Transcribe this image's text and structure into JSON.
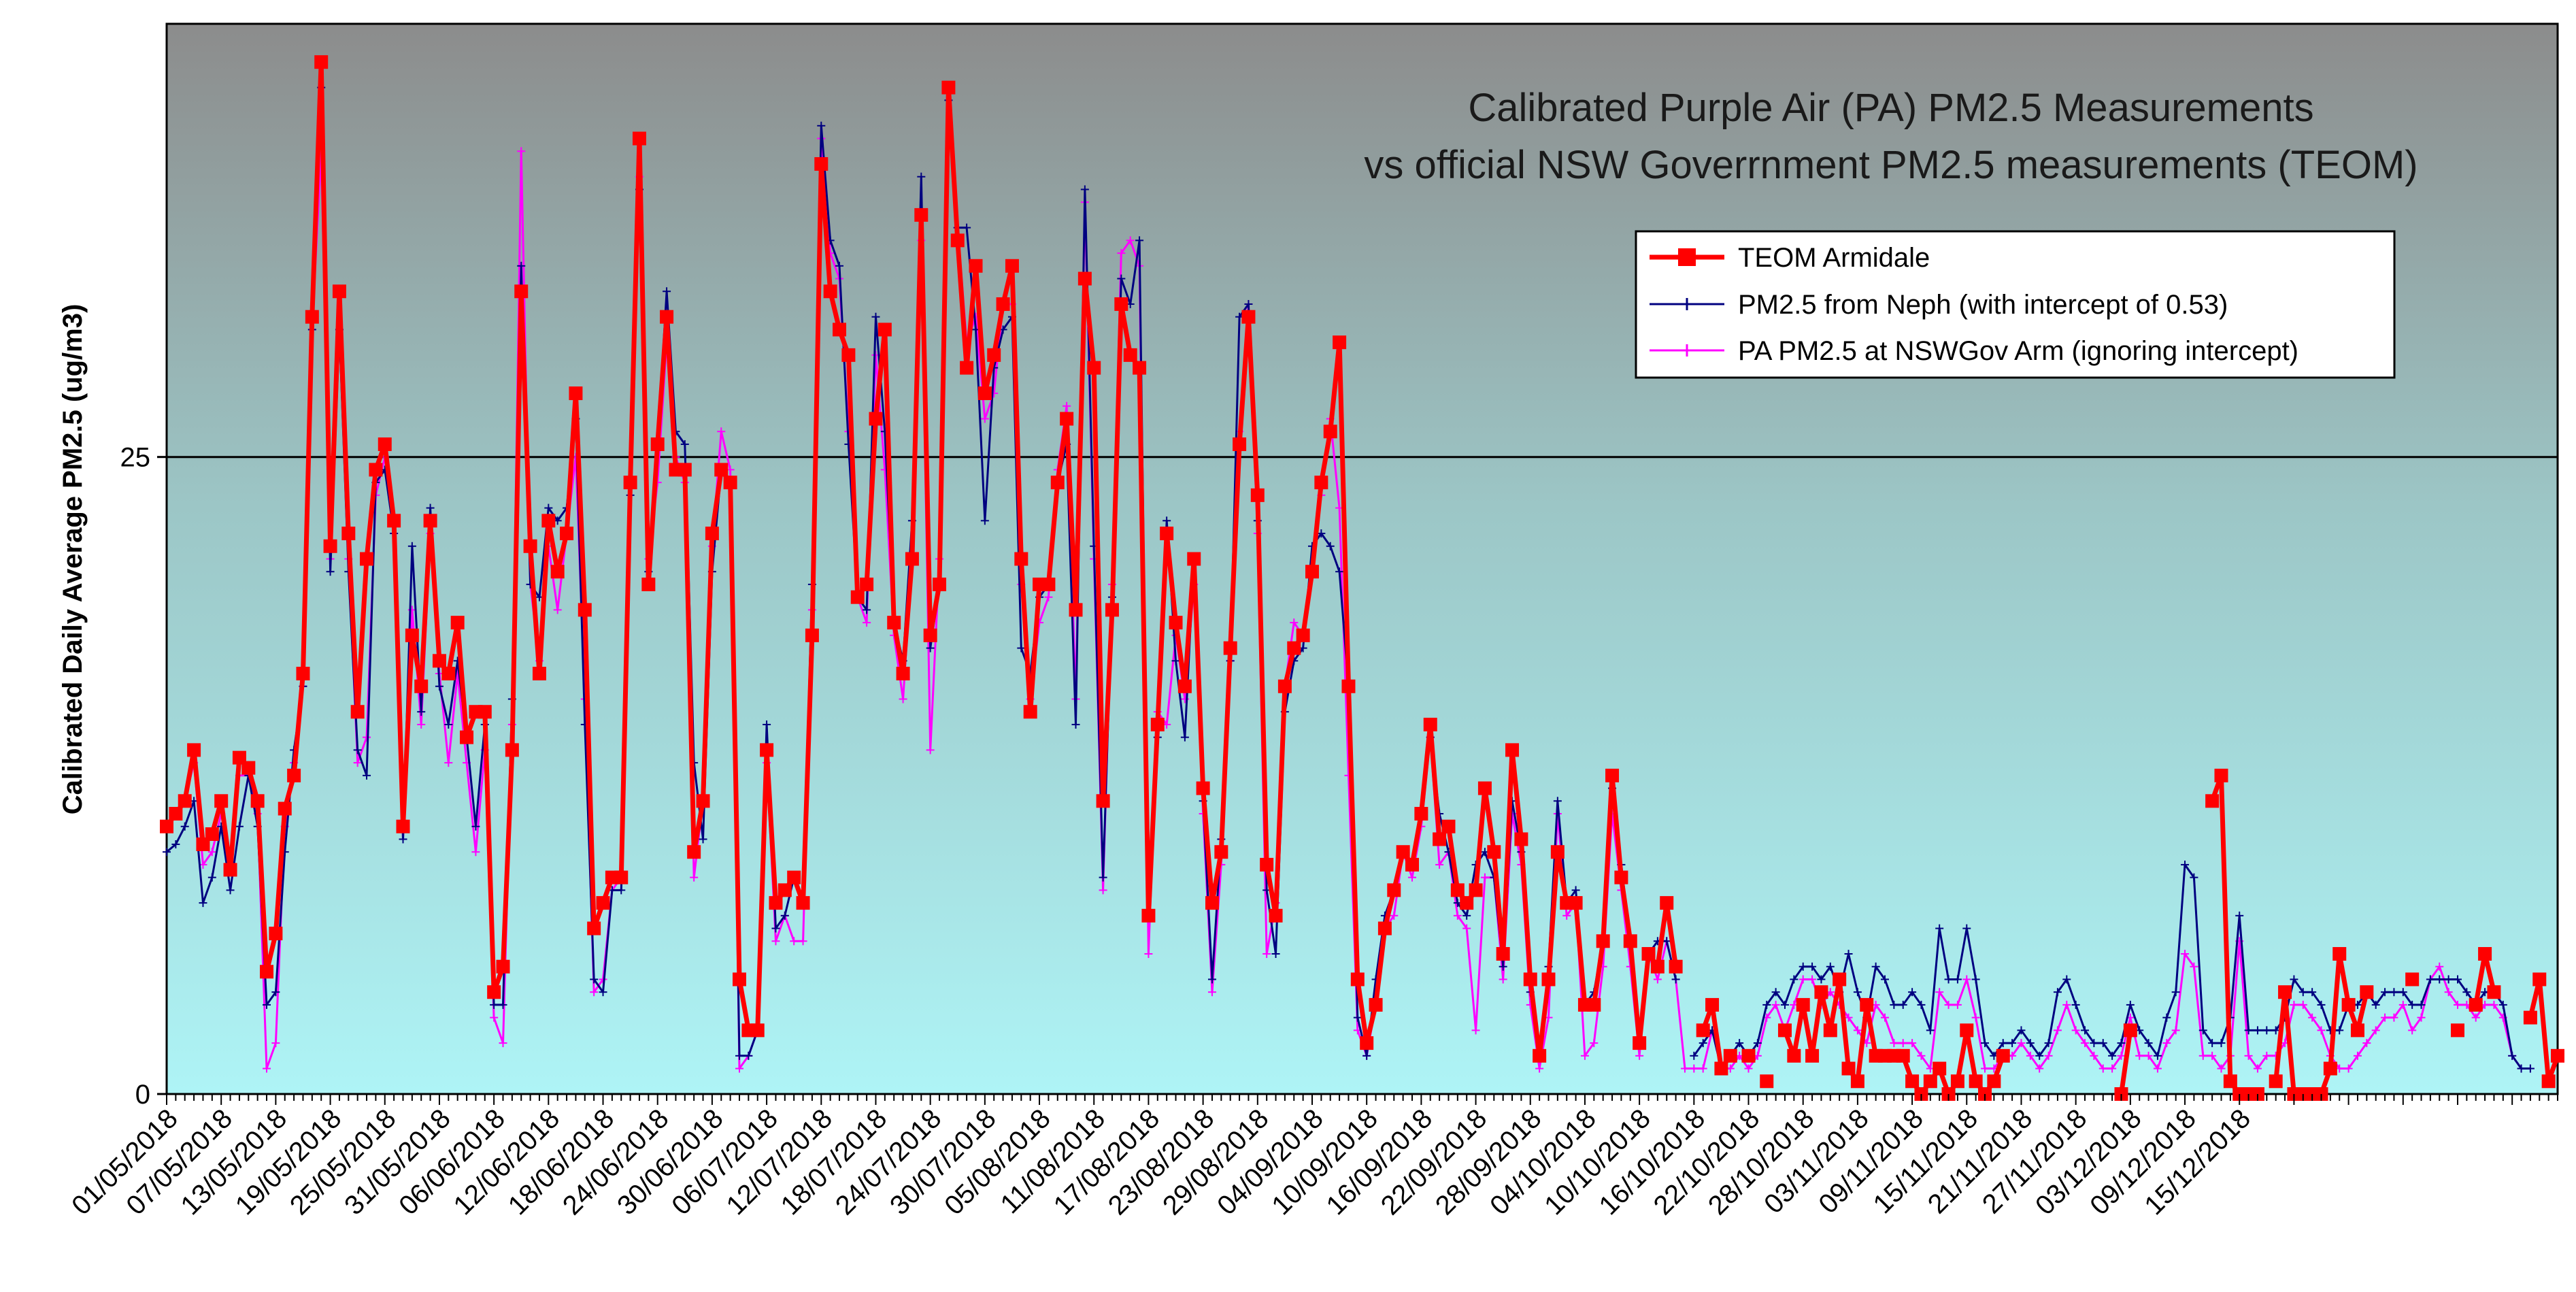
{
  "chart_data": {
    "type": "line",
    "title_lines": [
      "Calibrated Purple Air (PA) PM2.5 Measurements",
      "vs official NSW Goverrnment PM2.5 measurements (TEOM)"
    ],
    "ylabel": "Calibrated Daily Average PM2.5 (ug/m3)",
    "xlabel": "",
    "ylim": [
      0,
      42
    ],
    "yticks": [
      0,
      25
    ],
    "reference_line": 25,
    "x_tick_labels": [
      "01/05/2018",
      "07/05/2018",
      "13/05/2018",
      "19/05/2018",
      "25/05/2018",
      "31/05/2018",
      "06/06/2018",
      "12/06/2018",
      "18/06/2018",
      "24/06/2018",
      "30/06/2018",
      "06/07/2018",
      "12/07/2018",
      "18/07/2018",
      "24/07/2018",
      "30/07/2018",
      "05/08/2018",
      "11/08/2018",
      "17/08/2018",
      "23/08/2018",
      "29/08/2018",
      "04/09/2018",
      "10/09/2018",
      "16/09/2018",
      "22/09/2018",
      "28/09/2018",
      "04/10/2018",
      "10/10/2018",
      "16/10/2018",
      "22/10/2018",
      "28/10/2018",
      "03/11/2018",
      "09/11/2018",
      "15/11/2018",
      "21/11/2018",
      "27/11/2018",
      "03/12/2018",
      "09/12/2018",
      "15/12/2018"
    ],
    "x_tick_step_days": 6,
    "series": [
      {
        "name": "TEOM Armidale",
        "color": "#ff0000",
        "marker": "square",
        "values": [
          10.5,
          11.0,
          11.5,
          13.5,
          9.8,
          10.2,
          11.5,
          8.8,
          13.2,
          12.8,
          11.5,
          4.8,
          6.3,
          11.2,
          12.5,
          16.5,
          30.5,
          40.5,
          21.5,
          31.5,
          22.0,
          15.0,
          21.0,
          24.5,
          25.5,
          22.5,
          10.5,
          18.0,
          16.0,
          22.5,
          17.0,
          16.5,
          18.5,
          14.0,
          15.0,
          15.0,
          4.0,
          5.0,
          13.5,
          31.5,
          21.5,
          16.5,
          22.5,
          20.5,
          22.0,
          27.5,
          19.0,
          6.5,
          7.5,
          8.5,
          8.5,
          24.0,
          37.5,
          20.0,
          25.5,
          30.5,
          24.5,
          24.5,
          9.5,
          11.5,
          22.0,
          24.5,
          24.0,
          4.5,
          2.5,
          2.5,
          13.5,
          7.5,
          8.0,
          8.5,
          7.5,
          18.0,
          36.5,
          31.5,
          30.0,
          29.0,
          19.5,
          20.0,
          26.5,
          30.0,
          18.5,
          16.5,
          21.0,
          34.5,
          18.0,
          20.0,
          39.5,
          33.5,
          28.5,
          32.5,
          27.5,
          29.0,
          31.0,
          32.5,
          21.0,
          15.0,
          20.0,
          20.0,
          24.0,
          26.5,
          19.0,
          32.0,
          28.5,
          11.5,
          19.0,
          31.0,
          29.0,
          28.5,
          7.0,
          14.5,
          22.0,
          18.5,
          16.0,
          21.0,
          12.0,
          7.5,
          9.5,
          17.5,
          25.5,
          30.5,
          23.5,
          9.0,
          7.0,
          16.0,
          17.5,
          18.0,
          20.5,
          24.0,
          26.0,
          29.5,
          16.0,
          4.5,
          2.0,
          3.5,
          6.5,
          8.0,
          9.5,
          9.0,
          11.0,
          14.5,
          10.0,
          10.5,
          8.0,
          7.5,
          8.0,
          12.0,
          9.5,
          5.5,
          13.5,
          10.0,
          4.5,
          1.5,
          4.5,
          9.5,
          7.5,
          7.5,
          3.5,
          3.5,
          6.0,
          12.5,
          8.5,
          6.0,
          2.0,
          5.5,
          5.0,
          7.5,
          5.0,
          null,
          null,
          2.5,
          3.5,
          1.0,
          1.5,
          null,
          1.5,
          null,
          0.5,
          null,
          2.5,
          1.5,
          3.5,
          1.5,
          4.0,
          2.5,
          4.5,
          1.0,
          0.5,
          3.5,
          1.5,
          1.5,
          1.5,
          1.5,
          0.5,
          0.0,
          0.5,
          1.0,
          0.0,
          0.5,
          2.5,
          0.5,
          0.0,
          0.5,
          1.5,
          null,
          null,
          null,
          null,
          null,
          null,
          null,
          null,
          null,
          null,
          null,
          null,
          0.0,
          2.5,
          null,
          null,
          null,
          null,
          null,
          null,
          null,
          null,
          11.5,
          12.5,
          0.5,
          0.0,
          0.0,
          0.0,
          null,
          0.5,
          4.0,
          0.0,
          0.0,
          0.0,
          0.0,
          1.0,
          5.5,
          3.5,
          2.5,
          4.0,
          null,
          null,
          null,
          null,
          4.5,
          null,
          null,
          null,
          null,
          2.5,
          null,
          3.5,
          5.5,
          4.0,
          null,
          null,
          null,
          3.0,
          4.5,
          0.5,
          1.5
        ]
      },
      {
        "name": "PM2.5 from Neph (with intercept of 0.53)",
        "color": "#000080",
        "marker": "plus",
        "values": [
          9.5,
          9.8,
          10.5,
          11.5,
          7.5,
          8.5,
          10.5,
          8.0,
          10.5,
          12.5,
          10.5,
          3.5,
          4.0,
          9.5,
          13.5,
          16.0,
          30.0,
          39.5,
          20.5,
          30.0,
          20.5,
          13.5,
          12.5,
          24.0,
          24.5,
          22.0,
          10.0,
          21.5,
          15.0,
          23.0,
          16.0,
          14.5,
          17.0,
          14.0,
          10.5,
          14.5,
          3.5,
          3.5,
          15.5,
          32.5,
          20.0,
          19.5,
          23.0,
          22.5,
          23.0,
          26.5,
          14.5,
          4.5,
          4.0,
          8.0,
          8.0,
          23.5,
          35.5,
          20.5,
          25.5,
          31.5,
          26.0,
          25.5,
          13.0,
          10.0,
          20.5,
          24.5,
          24.0,
          1.5,
          1.5,
          2.5,
          14.5,
          6.5,
          7.0,
          8.5,
          7.5,
          20.0,
          38.0,
          33.5,
          32.5,
          25.5,
          19.5,
          19.0,
          30.5,
          26.0,
          18.5,
          17.0,
          22.5,
          36.0,
          17.5,
          20.0,
          39.0,
          34.0,
          34.0,
          30.0,
          22.5,
          28.5,
          30.0,
          30.5,
          17.5,
          16.5,
          19.5,
          20.0,
          24.0,
          25.5,
          14.5,
          35.5,
          21.5,
          8.5,
          19.5,
          32.0,
          31.0,
          33.5,
          7.0,
          14.0,
          22.5,
          17.0,
          14.0,
          21.0,
          11.5,
          4.5,
          10.0,
          17.0,
          30.5,
          31.0,
          22.5,
          8.0,
          5.5,
          15.0,
          17.0,
          17.5,
          21.5,
          22.0,
          21.5,
          20.5,
          16.0,
          3.0,
          1.5,
          4.5,
          7.0,
          8.0,
          9.5,
          9.0,
          11.0,
          14.0,
          11.0,
          9.5,
          7.5,
          7.0,
          9.0,
          9.5,
          8.5,
          5.0,
          11.5,
          9.5,
          4.0,
          1.5,
          5.0,
          11.5,
          7.5,
          8.0,
          3.5,
          4.0,
          6.0,
          12.0,
          9.0,
          6.0,
          2.0,
          5.5,
          6.0,
          6.0,
          4.5,
          null,
          1.5,
          2.0,
          2.5,
          1.0,
          1.5,
          2.0,
          1.5,
          2.0,
          3.5,
          4.0,
          3.5,
          4.5,
          5.0,
          5.0,
          4.5,
          5.0,
          4.0,
          5.5,
          4.0,
          3.0,
          5.0,
          4.5,
          3.5,
          3.5,
          4.0,
          3.5,
          2.5,
          6.5,
          4.5,
          4.5,
          6.5,
          4.5,
          2.0,
          1.5,
          2.0,
          2.0,
          2.5,
          2.0,
          1.5,
          2.0,
          4.0,
          4.5,
          3.5,
          2.5,
          2.0,
          2.0,
          1.5,
          2.0,
          3.5,
          2.5,
          2.0,
          1.5,
          3.0,
          4.0,
          9.0,
          8.5,
          2.5,
          2.0,
          2.0,
          3.0,
          7.0,
          2.5,
          2.5,
          2.5,
          2.5,
          3.0,
          4.5,
          4.0,
          4.0,
          3.5,
          2.5,
          2.5,
          3.5,
          3.5,
          4.0,
          3.5,
          4.0,
          4.0,
          4.0,
          3.5,
          3.5,
          4.5,
          4.5,
          4.5,
          4.5,
          4.0,
          3.5,
          4.0,
          4.0,
          3.5,
          1.5,
          1.0,
          1.0
        ]
      },
      {
        "name": "PA PM2.5 at NSWGov Arm (ignoring intercept)",
        "color": "#ff00ff",
        "marker": "plus",
        "values": [
          10.5,
          11.0,
          11.5,
          13.0,
          9.0,
          9.5,
          11.0,
          9.0,
          12.5,
          12.5,
          11.0,
          1.0,
          2.0,
          10.5,
          13.0,
          16.0,
          30.0,
          37.0,
          21.0,
          30.0,
          21.0,
          13.0,
          14.0,
          23.5,
          25.0,
          22.0,
          10.0,
          19.0,
          14.5,
          22.0,
          16.5,
          13.0,
          16.5,
          13.0,
          9.5,
          13.5,
          3.0,
          2.0,
          14.5,
          37.0,
          20.0,
          17.0,
          21.5,
          19.0,
          22.0,
          25.0,
          15.5,
          4.0,
          4.5,
          8.0,
          8.5,
          24.0,
          36.0,
          21.0,
          24.0,
          29.5,
          25.0,
          24.0,
          8.5,
          11.5,
          21.5,
          26.0,
          24.5,
          1.0,
          1.5,
          2.5,
          13.0,
          6.0,
          7.0,
          6.0,
          6.0,
          19.0,
          37.5,
          33.0,
          32.0,
          26.0,
          19.5,
          18.5,
          29.0,
          24.5,
          18.0,
          15.5,
          21.0,
          33.5,
          13.5,
          21.0,
          39.5,
          34.0,
          29.5,
          30.5,
          26.5,
          27.5,
          31.0,
          31.0,
          20.0,
          15.5,
          18.5,
          19.5,
          24.5,
          27.0,
          15.5,
          35.0,
          21.0,
          8.0,
          20.0,
          33.0,
          33.5,
          32.5,
          5.5,
          15.0,
          14.5,
          18.0,
          15.5,
          20.0,
          11.0,
          4.0,
          9.0,
          17.0,
          26.0,
          31.0,
          22.0,
          5.5,
          7.5,
          16.0,
          18.5,
          18.0,
          20.5,
          23.5,
          26.5,
          23.0,
          12.5,
          2.5,
          1.5,
          3.5,
          6.5,
          7.0,
          9.5,
          8.5,
          10.5,
          14.0,
          9.0,
          9.5,
          7.0,
          6.5,
          2.5,
          8.5,
          8.5,
          4.5,
          11.0,
          9.0,
          3.5,
          1.0,
          3.0,
          11.0,
          7.0,
          7.5,
          1.5,
          2.0,
          5.0,
          11.0,
          8.0,
          5.0,
          1.5,
          5.5,
          4.5,
          6.0,
          4.5,
          1.0,
          1.0,
          1.0,
          2.5,
          1.0,
          1.0,
          1.5,
          1.0,
          1.5,
          3.0,
          3.5,
          2.5,
          3.5,
          4.5,
          4.5,
          3.5,
          4.0,
          3.5,
          3.0,
          2.5,
          2.0,
          3.5,
          3.0,
          2.0,
          2.0,
          2.0,
          1.5,
          1.0,
          4.0,
          3.5,
          3.5,
          4.5,
          3.0,
          1.0,
          1.0,
          1.5,
          1.5,
          2.0,
          1.5,
          1.0,
          1.5,
          2.5,
          3.5,
          2.5,
          2.0,
          1.5,
          1.0,
          1.0,
          1.5,
          3.0,
          1.5,
          1.5,
          1.0,
          2.0,
          2.5,
          5.5,
          5.0,
          1.5,
          1.5,
          1.0,
          1.5,
          6.0,
          1.5,
          1.0,
          1.5,
          1.5,
          2.0,
          3.5,
          3.5,
          3.0,
          2.5,
          1.5,
          1.0,
          1.0,
          1.5,
          2.0,
          2.5,
          3.0,
          3.0,
          3.5,
          2.5,
          3.0,
          4.5,
          5.0,
          4.0,
          3.5,
          3.5,
          3.0,
          3.5,
          3.5,
          3.0,
          1.5,
          1.0,
          1.0
        ]
      }
    ]
  }
}
